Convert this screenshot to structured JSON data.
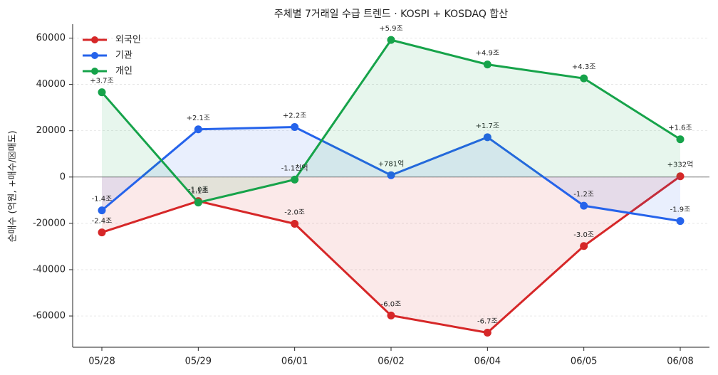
{
  "chart_data": {
    "type": "line",
    "title": "주체별 7거래일 수급 트렌드 · KOSPI + KOSDAQ 합산",
    "y_label": "순매수 (억원, +매수/☒매도)",
    "categories": [
      "05/28",
      "05/29",
      "06/01",
      "06/02",
      "06/04",
      "06/05",
      "06/08"
    ],
    "series": [
      {
        "name": "외국인",
        "color": "#d62728",
        "label_color": "#9b1c1c",
        "values": [
          -23900,
          -10400,
          -20200,
          -59800,
          -67200,
          -29800,
          332
        ],
        "value_labels": [
          "-2.4조",
          "-1.0조",
          "-2.0조",
          "-6.0조",
          "-6.7조",
          "-3.0조",
          "+332억"
        ]
      },
      {
        "name": "기관",
        "color": "#2563eb",
        "label_color": "#1e40af",
        "values": [
          -14400,
          20600,
          21600,
          781,
          17200,
          -12400,
          -19000
        ],
        "value_labels": [
          "-1.4조",
          "+2.1조",
          "+2.2조",
          "+781억",
          "+1.7조",
          "-1.2조",
          "-1.9조"
        ]
      },
      {
        "name": "개인",
        "color": "#16a34a",
        "label_color": "#166534",
        "values": [
          36600,
          -11000,
          -1100,
          59200,
          48600,
          42600,
          16300
        ],
        "value_labels": [
          "+3.7조",
          "-1.1조",
          "-1.1천억",
          "+5.9조",
          "+4.9조",
          "+4.3조",
          "+1.6조"
        ]
      }
    ],
    "ylim": [
      -73500,
      66000
    ],
    "yticks": [
      -60000,
      -40000,
      -20000,
      0,
      20000,
      40000,
      60000
    ],
    "grid": true,
    "area_fill": true,
    "legend": "upper-left"
  }
}
